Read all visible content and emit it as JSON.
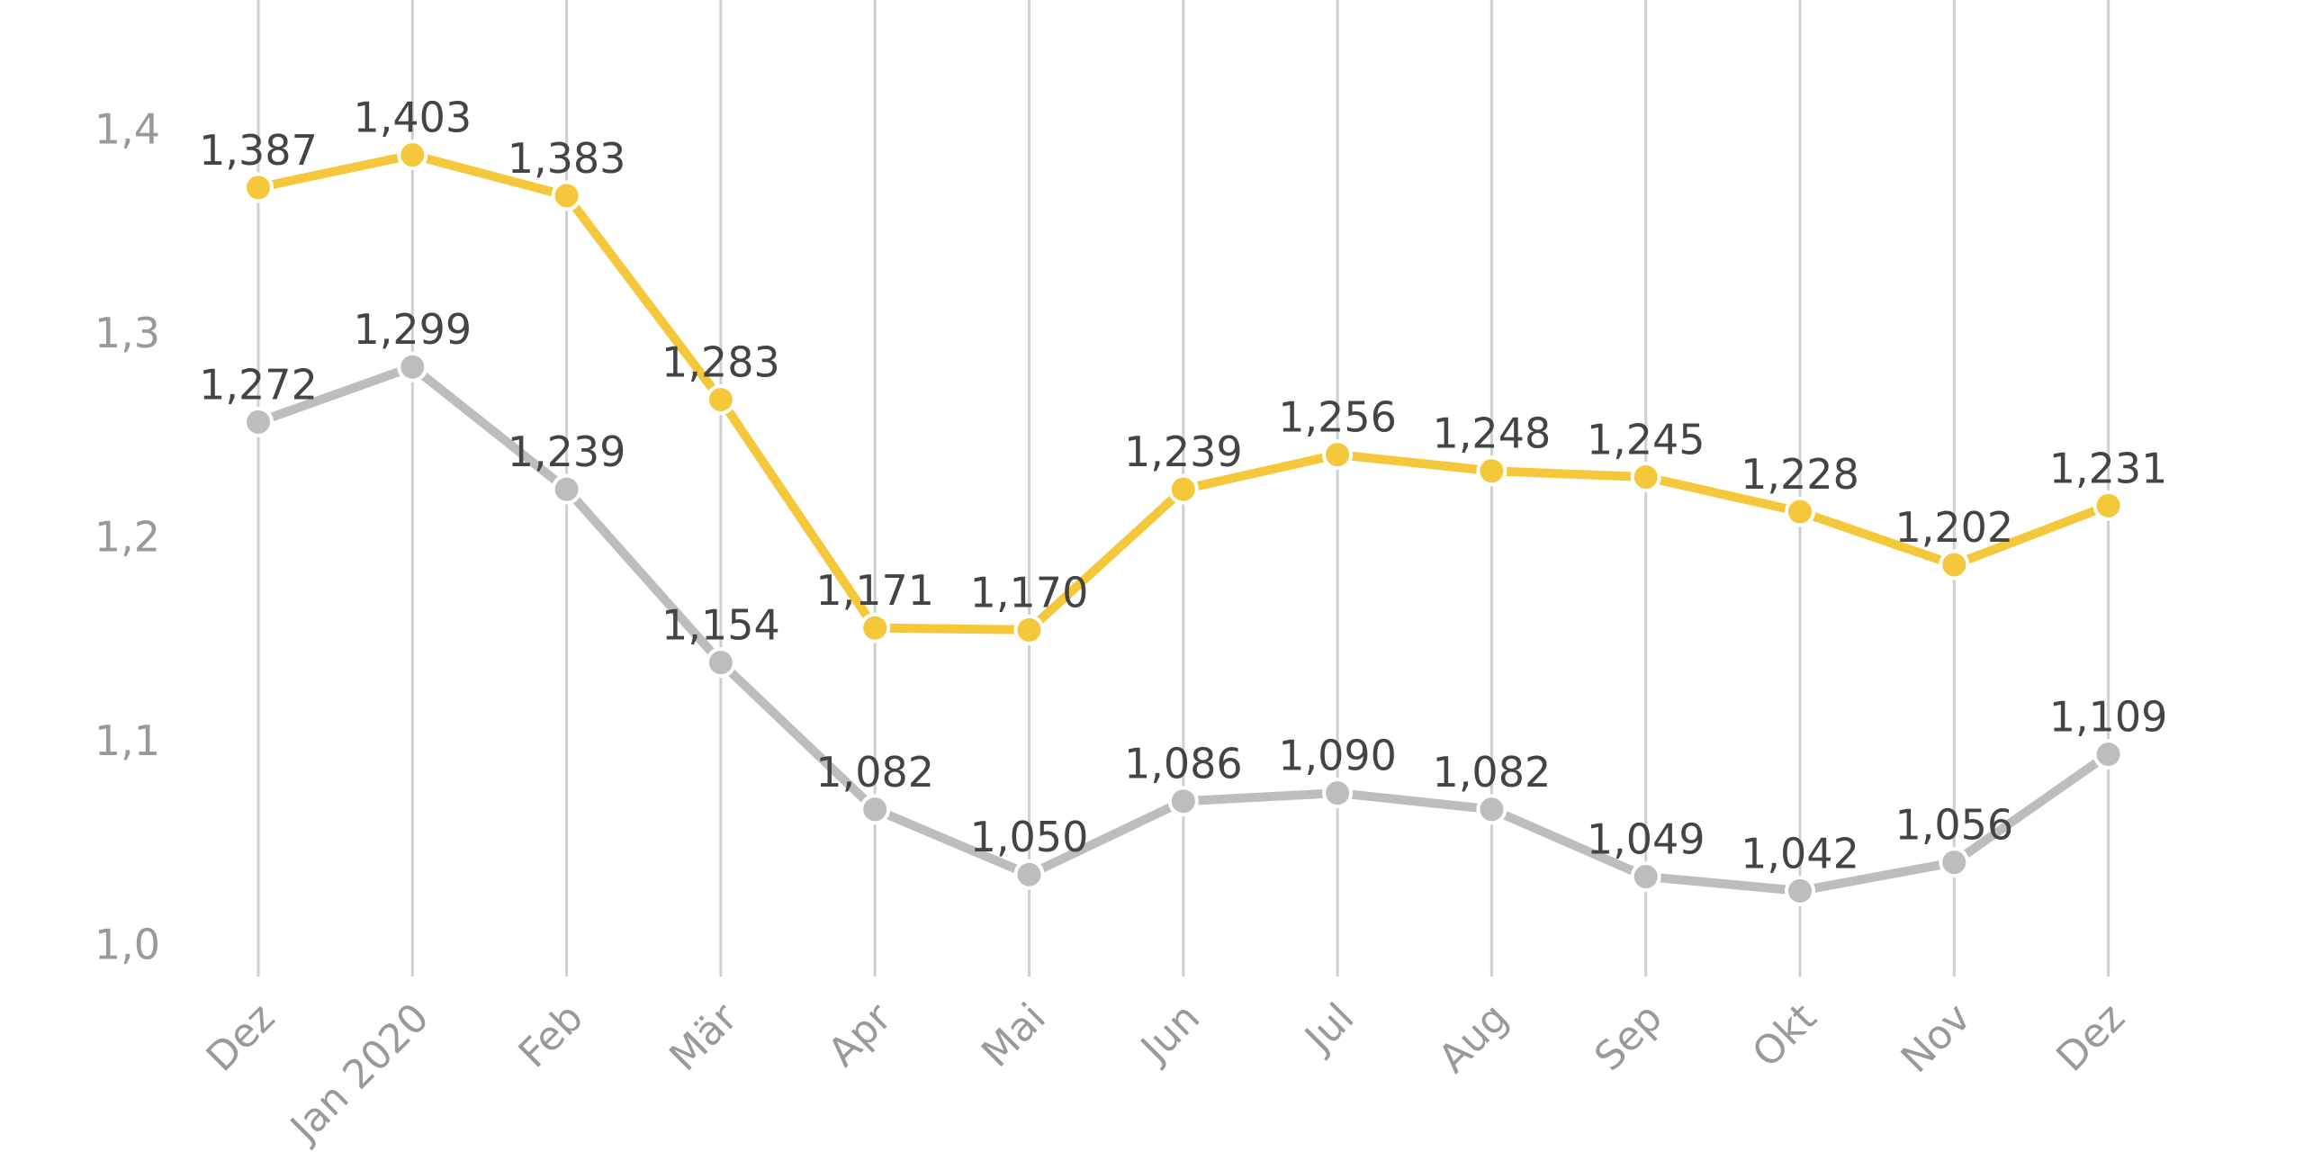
{
  "chart_data": {
    "type": "line",
    "categories": [
      "Dez",
      "Jan 2020",
      "Feb",
      "Mär",
      "Apr",
      "Mai",
      "Jun",
      "Jul",
      "Aug",
      "Sep",
      "Okt",
      "Nov",
      "Dez"
    ],
    "series": [
      {
        "color": "#bdbdbd",
        "values": [
          1.272,
          1.299,
          1.239,
          1.154,
          1.082,
          1.05,
          1.086,
          1.09,
          1.082,
          1.049,
          1.042,
          1.056,
          1.109
        ],
        "value_labels": [
          "1,272",
          "1,299",
          "1,239",
          "1,154",
          "1,082",
          "1,050",
          "1,086",
          "1,090",
          "1,082",
          "1,049",
          "1,042",
          "1,056",
          "1,109"
        ]
      },
      {
        "color": "#f5c83c",
        "values": [
          1.387,
          1.403,
          1.383,
          1.283,
          1.171,
          1.17,
          1.239,
          1.256,
          1.248,
          1.245,
          1.228,
          1.202,
          1.231
        ],
        "value_labels": [
          "1,387",
          "1,403",
          "1,383",
          "1,283",
          "1,171",
          "1,170",
          "1,239",
          "1,256",
          "1,248",
          "1,245",
          "1,228",
          "1,202",
          "1,231"
        ]
      }
    ],
    "ylim": [
      1.0,
      1.479
    ],
    "yticks": [
      {
        "value": 1.0,
        "label": "1,0"
      },
      {
        "value": 1.1,
        "label": "1,1"
      },
      {
        "value": 1.2,
        "label": "1,2"
      },
      {
        "value": 1.3,
        "label": "1,3"
      },
      {
        "value": 1.4,
        "label": "1,4"
      }
    ]
  }
}
